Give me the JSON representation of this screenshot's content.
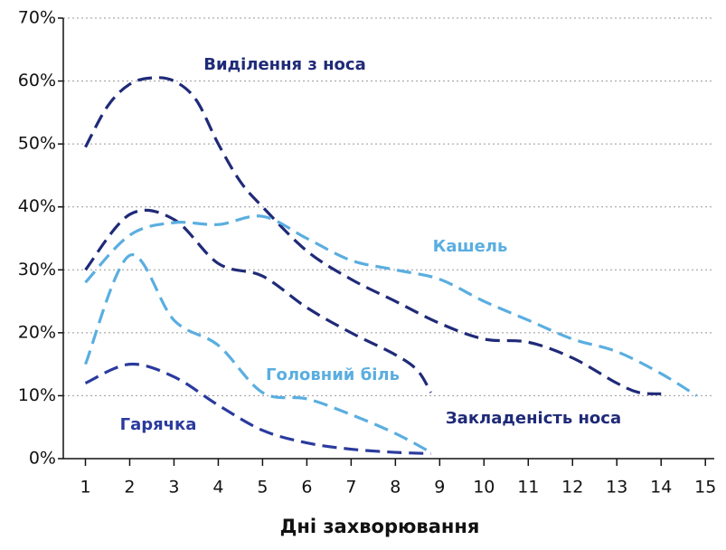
{
  "chart_data": {
    "type": "line",
    "xlabel": "Дні захворювання",
    "xlim": [
      0.5,
      15.2
    ],
    "xticks": [
      1,
      2,
      3,
      4,
      5,
      6,
      7,
      8,
      9,
      10,
      11,
      12,
      13,
      14,
      15
    ],
    "ylim": [
      0,
      70
    ],
    "yticks": [
      {
        "value": 0,
        "label": "0%"
      },
      {
        "value": 10,
        "label": "10%"
      },
      {
        "value": 20,
        "label": "20%"
      },
      {
        "value": 30,
        "label": "30%"
      },
      {
        "value": 40,
        "label": "40%"
      },
      {
        "value": 50,
        "label": "50%"
      },
      {
        "value": 60,
        "label": "60%"
      },
      {
        "value": 70,
        "label": "70%"
      }
    ],
    "grid": true,
    "series": [
      {
        "name": "Виділення з носа",
        "color": "#1f2a78",
        "x": [
          1,
          1.5,
          2,
          2.5,
          3,
          3.5,
          4,
          4.5,
          5,
          6,
          7,
          8,
          9,
          10,
          11,
          12,
          13,
          13.5,
          14
        ],
        "values": [
          49.5,
          56,
          59.5,
          60.5,
          60,
          57,
          50,
          44,
          40,
          33,
          28.5,
          25,
          21.5,
          19,
          18.5,
          16,
          12,
          10.5,
          10.3
        ]
      },
      {
        "name": "Закладеність носа",
        "color": "#1f2a78",
        "x": [
          1,
          2,
          3,
          4,
          5,
          6,
          7,
          8,
          8.5,
          8.8
        ],
        "values": [
          30,
          38.8,
          38,
          31,
          29,
          24,
          20,
          16.5,
          14,
          10.5
        ]
      },
      {
        "name": "Кашель",
        "color": "#5aaee0",
        "x": [
          1,
          2,
          3,
          4,
          5,
          6,
          7,
          8,
          9,
          10,
          11,
          12,
          13,
          14,
          14.8
        ],
        "values": [
          28,
          35.5,
          37.5,
          37.2,
          38.5,
          35,
          31.5,
          30,
          28.5,
          25,
          22,
          19,
          17,
          13.5,
          10
        ]
      },
      {
        "name": "Головний біль",
        "color": "#5aaee0",
        "x": [
          1,
          2,
          3,
          4,
          5,
          6,
          7,
          8,
          8.8
        ],
        "values": [
          15,
          32.3,
          22,
          18,
          10.5,
          9.5,
          7,
          4,
          1
        ]
      },
      {
        "name": "Гарячка",
        "color": "#2a3a9e",
        "x": [
          1,
          2,
          3,
          4,
          5,
          6,
          7,
          8,
          8.8
        ],
        "values": [
          12,
          15,
          13,
          8.5,
          4.5,
          2.5,
          1.5,
          1,
          0.8
        ]
      }
    ]
  }
}
